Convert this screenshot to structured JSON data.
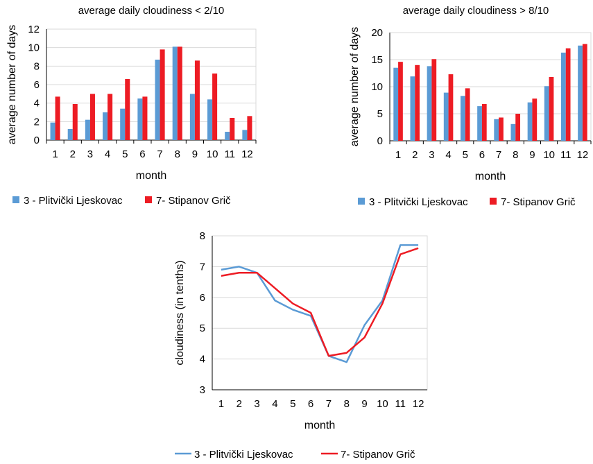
{
  "colors": {
    "plitvicki": "#5B9BD5",
    "stipanov": "#ED1C24",
    "grid": "#D9D9D9",
    "axis": "#000000"
  },
  "chart_data": [
    {
      "type": "bar",
      "title": "average daily cloudiness < 2/10",
      "xlabel": "month",
      "ylabel": "average number of days",
      "categories": [
        "1",
        "2",
        "3",
        "4",
        "5",
        "6",
        "7",
        "8",
        "9",
        "10",
        "11",
        "12"
      ],
      "ylim": [
        0,
        12
      ],
      "yticks": [
        "0",
        "2",
        "4",
        "6",
        "8",
        "10",
        "12"
      ],
      "grid": true,
      "legend": "bottom",
      "series": [
        {
          "name": "3 - Plitvički Ljeskovac",
          "values": [
            1.9,
            1.2,
            2.2,
            3.0,
            3.4,
            4.5,
            8.7,
            10.1,
            5.0,
            4.4,
            0.9,
            1.1
          ]
        },
        {
          "name": "7- Stipanov Grič",
          "values": [
            4.7,
            3.9,
            5.0,
            5.0,
            6.6,
            4.7,
            9.8,
            10.1,
            8.6,
            7.2,
            2.4,
            2.6
          ]
        }
      ]
    },
    {
      "type": "bar",
      "title": "average daily cloudiness > 8/10",
      "xlabel": "month",
      "ylabel": "average number of days",
      "categories": [
        "1",
        "2",
        "3",
        "4",
        "5",
        "6",
        "7",
        "8",
        "9",
        "10",
        "11",
        "12"
      ],
      "ylim": [
        0,
        20
      ],
      "yticks": [
        "0",
        "5",
        "10",
        "15",
        "20"
      ],
      "grid": true,
      "legend": "bottom",
      "series": [
        {
          "name": "3 - Plitvički Ljeskovac",
          "values": [
            13.5,
            11.9,
            13.8,
            8.9,
            8.3,
            6.4,
            4.0,
            3.1,
            7.1,
            10.1,
            16.3,
            17.6
          ]
        },
        {
          "name": "7- Stipanov Grič",
          "values": [
            14.6,
            14.0,
            15.1,
            12.3,
            9.7,
            6.8,
            4.3,
            5.0,
            7.8,
            11.8,
            17.1,
            17.9
          ]
        }
      ]
    },
    {
      "type": "line",
      "title": "",
      "xlabel": "month",
      "ylabel": "cloudiness (in tenths)",
      "categories": [
        "1",
        "2",
        "3",
        "4",
        "5",
        "6",
        "7",
        "8",
        "9",
        "10",
        "11",
        "12"
      ],
      "ylim": [
        3,
        8
      ],
      "yticks": [
        "3",
        "4",
        "5",
        "6",
        "7",
        "8"
      ],
      "grid": true,
      "legend": "bottom",
      "series": [
        {
          "name": "3 - Plitvički Ljeskovac",
          "values": [
            6.9,
            7.0,
            6.8,
            5.9,
            5.6,
            5.4,
            4.1,
            3.9,
            5.1,
            5.9,
            7.7,
            7.7
          ]
        },
        {
          "name": "7- Stipanov Grič",
          "values": [
            6.7,
            6.8,
            6.8,
            6.3,
            5.8,
            5.5,
            4.1,
            4.2,
            4.7,
            5.8,
            7.4,
            7.6
          ]
        }
      ]
    }
  ]
}
